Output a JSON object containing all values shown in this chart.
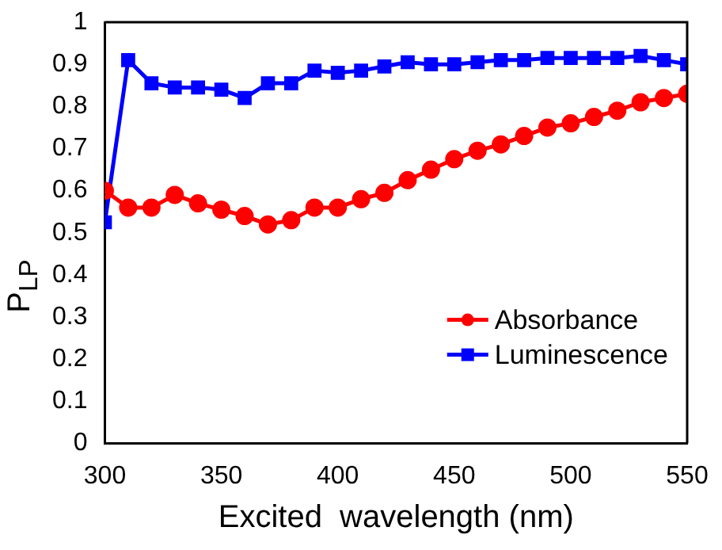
{
  "chart_data": {
    "type": "line",
    "xlabel": "Excited  wavelength (nm)",
    "ylabel": "P$_{LP}$",
    "x": [
      300,
      310,
      320,
      330,
      340,
      350,
      360,
      370,
      380,
      390,
      400,
      410,
      420,
      430,
      440,
      450,
      460,
      470,
      480,
      490,
      500,
      510,
      520,
      530,
      540,
      550
    ],
    "series": [
      {
        "name": "Absorbance",
        "color": "#ff0000",
        "marker": "circle",
        "values": [
          0.6,
          0.56,
          0.56,
          0.59,
          0.57,
          0.555,
          0.54,
          0.52,
          0.53,
          0.56,
          0.56,
          0.58,
          0.595,
          0.625,
          0.65,
          0.675,
          0.695,
          0.71,
          0.73,
          0.75,
          0.76,
          0.775,
          0.79,
          0.81,
          0.82,
          0.83
        ]
      },
      {
        "name": "Luminescence",
        "color": "#0000ff",
        "marker": "square",
        "values": [
          0.525,
          0.91,
          0.855,
          0.845,
          0.845,
          0.84,
          0.82,
          0.855,
          0.855,
          0.885,
          0.88,
          0.885,
          0.895,
          0.905,
          0.9,
          0.9,
          0.905,
          0.91,
          0.91,
          0.915,
          0.915,
          0.915,
          0.915,
          0.92,
          0.91,
          0.9
        ]
      }
    ],
    "xlim": [
      300,
      550
    ],
    "xticks": [
      300,
      350,
      400,
      450,
      500,
      550
    ],
    "ylim": [
      0,
      1
    ],
    "yticks": [
      0,
      0.1,
      0.2,
      0.3,
      0.4,
      0.5,
      0.6,
      0.7,
      0.8,
      0.9,
      1
    ],
    "grid": false,
    "legend": "bottom right",
    "line_style": "solid"
  }
}
